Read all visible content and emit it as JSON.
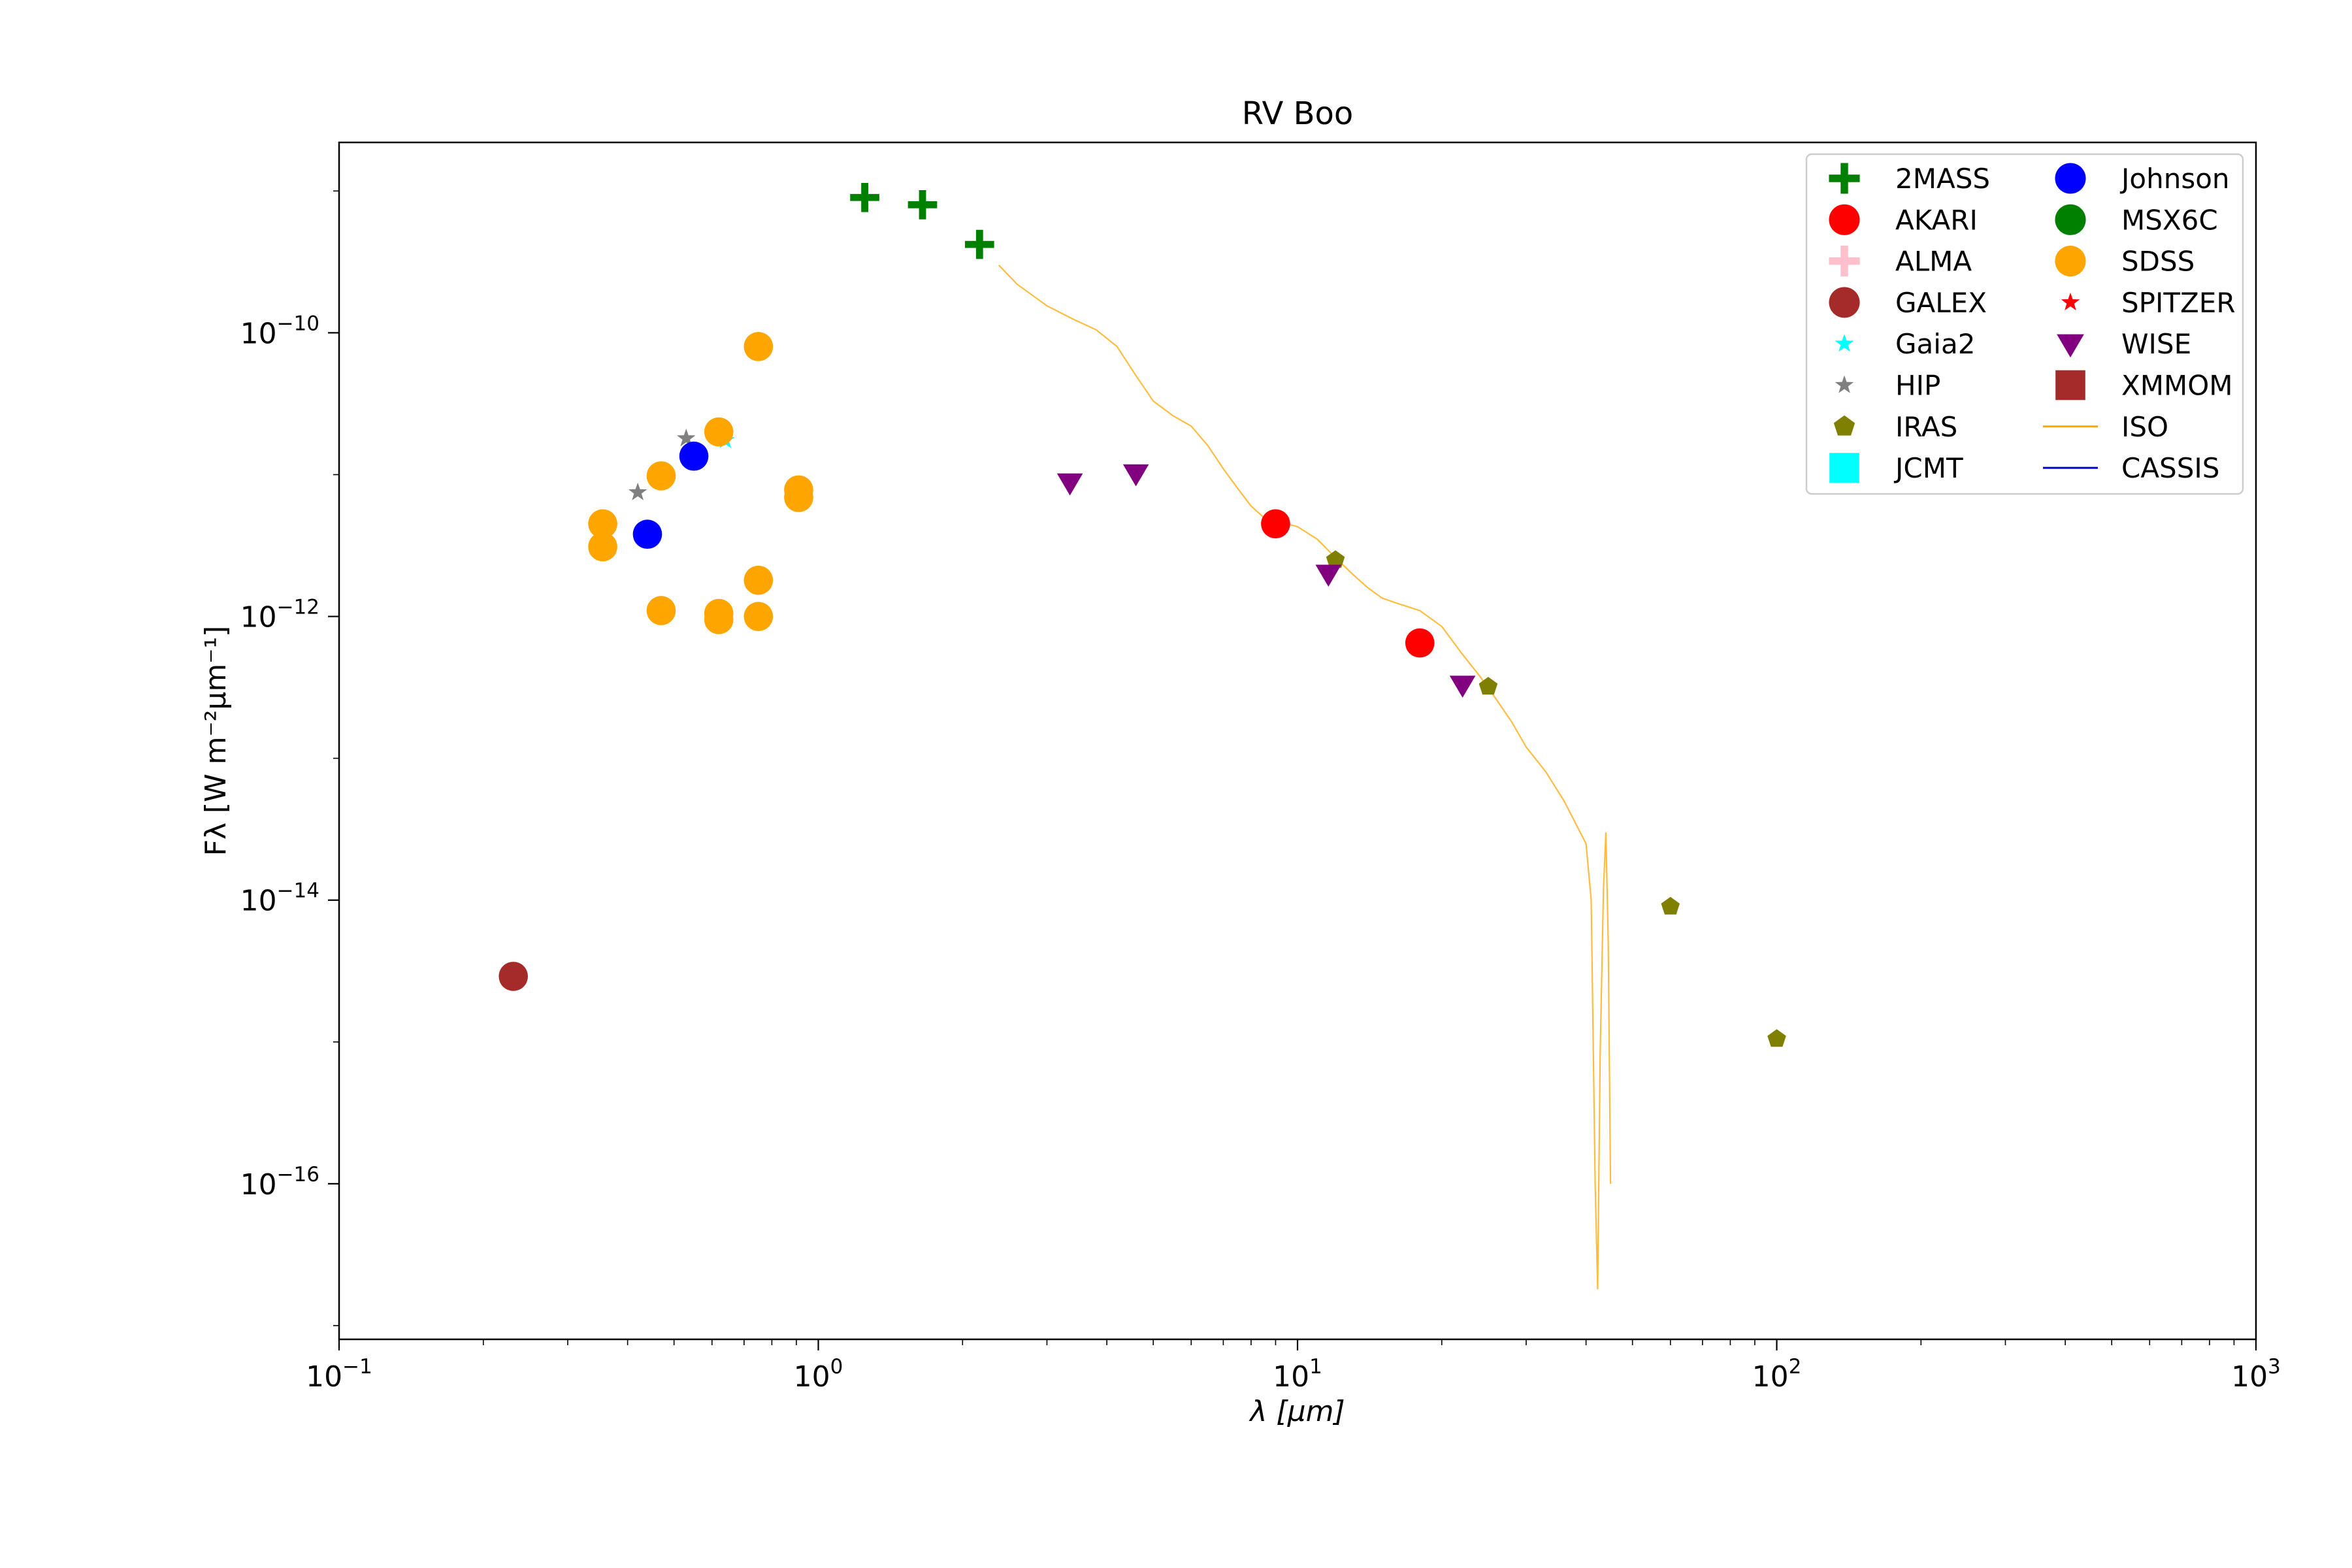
{
  "chart_data": {
    "type": "scatter",
    "title": "RV Boo",
    "xlabel": "λ [μm]",
    "ylabel": "Fλ [W m⁻²μm⁻¹]",
    "xscale": "log",
    "yscale": "log",
    "xlim": [
      0.1,
      1000
    ],
    "ylim": [
      8e-18,
      2.2e-09
    ],
    "x_ticks": [
      {
        "value": 0.1,
        "base": "10",
        "exp": "−1"
      },
      {
        "value": 1,
        "base": "10",
        "exp": "0"
      },
      {
        "value": 10,
        "base": "10",
        "exp": "1"
      },
      {
        "value": 100,
        "base": "10",
        "exp": "2"
      },
      {
        "value": 1000,
        "base": "10",
        "exp": "3"
      }
    ],
    "y_ticks": [
      {
        "value": 1e-10,
        "base": "10",
        "exp": "−10"
      },
      {
        "value": 1e-12,
        "base": "10",
        "exp": "−12"
      },
      {
        "value": 1e-14,
        "base": "10",
        "exp": "−14"
      },
      {
        "value": 1e-16,
        "base": "10",
        "exp": "−16"
      }
    ],
    "legend_position": "top-right",
    "series": [
      {
        "name": "2MASS",
        "marker": "plus",
        "color": "#008000",
        "points": [
          [
            1.25,
            9e-10
          ],
          [
            1.65,
            8e-10
          ],
          [
            2.17,
            4.2e-10
          ]
        ]
      },
      {
        "name": "AKARI",
        "marker": "circle",
        "color": "#ff0000",
        "points": [
          [
            9.0,
            4.5e-12
          ],
          [
            18.0,
            6.5e-13
          ]
        ]
      },
      {
        "name": "ALMA",
        "marker": "plus",
        "color": "#ffc0cb",
        "points": []
      },
      {
        "name": "GALEX",
        "marker": "circle",
        "color": "#a52a2a",
        "points": [
          [
            0.231,
            2.9e-15
          ]
        ]
      },
      {
        "name": "Gaia2",
        "marker": "star",
        "color": "#00ffff",
        "points": [
          [
            0.64,
            1.75e-11
          ]
        ]
      },
      {
        "name": "HIP",
        "marker": "star",
        "color": "#808080",
        "points": [
          [
            0.42,
            7.5e-12
          ],
          [
            0.53,
            1.8e-11
          ]
        ]
      },
      {
        "name": "IRAS",
        "marker": "pentagon",
        "color": "#808000",
        "points": [
          [
            12.0,
            2.5e-12
          ],
          [
            25.0,
            3.2e-13
          ],
          [
            60.0,
            9e-15
          ],
          [
            100.0,
            1.05e-15
          ]
        ]
      },
      {
        "name": "JCMT",
        "marker": "square",
        "color": "#00ffff",
        "points": []
      },
      {
        "name": "Johnson",
        "marker": "circle",
        "color": "#0000ff",
        "points": [
          [
            0.44,
            3.8e-12
          ],
          [
            0.55,
            1.35e-11
          ]
        ]
      },
      {
        "name": "MSX6C",
        "marker": "circle",
        "color": "#008000",
        "points": []
      },
      {
        "name": "SDSS",
        "marker": "circle",
        "color": "#ffa500",
        "points": [
          [
            0.355,
            4.5e-12
          ],
          [
            0.355,
            3.1e-12
          ],
          [
            0.47,
            9.8e-12
          ],
          [
            0.47,
            1.1e-12
          ],
          [
            0.62,
            2e-11
          ],
          [
            0.62,
            1.05e-12
          ],
          [
            0.62,
            9.5e-13
          ],
          [
            0.75,
            8e-11
          ],
          [
            0.75,
            1.8e-12
          ],
          [
            0.75,
            1e-12
          ],
          [
            0.91,
            7.8e-12
          ],
          [
            0.91,
            6.9e-12
          ]
        ]
      },
      {
        "name": "SPITZER",
        "marker": "star",
        "color": "#ff0000",
        "points": []
      },
      {
        "name": "WISE",
        "marker": "triangle-down",
        "color": "#800080",
        "points": [
          [
            3.35,
            8.8e-12
          ],
          [
            4.6,
            1.02e-11
          ],
          [
            11.6,
            2e-12
          ],
          [
            22.1,
            3.3e-13
          ]
        ]
      },
      {
        "name": "XMMOM",
        "marker": "square",
        "color": "#a52a2a",
        "points": []
      },
      {
        "name": "ISO",
        "marker": "line",
        "color": "#ffa500",
        "points": [
          [
            2.38,
            3e-10
          ],
          [
            2.6,
            2.2e-10
          ],
          [
            3.0,
            1.55e-10
          ],
          [
            3.4,
            1.25e-10
          ],
          [
            3.8,
            1.05e-10
          ],
          [
            4.2,
            8e-11
          ],
          [
            4.6,
            5e-11
          ],
          [
            5.0,
            3.3e-11
          ],
          [
            5.5,
            2.6e-11
          ],
          [
            6.0,
            2.2e-11
          ],
          [
            6.5,
            1.6e-11
          ],
          [
            7.0,
            1.1e-11
          ],
          [
            7.5,
            8e-12
          ],
          [
            8.0,
            6e-12
          ],
          [
            8.5,
            5e-12
          ],
          [
            9.0,
            4.6e-12
          ],
          [
            9.5,
            4.5e-12
          ],
          [
            10.0,
            4.3e-12
          ],
          [
            11.0,
            3.5e-12
          ],
          [
            12.0,
            2.6e-12
          ],
          [
            13.0,
            2e-12
          ],
          [
            14.0,
            1.6e-12
          ],
          [
            15.0,
            1.35e-12
          ],
          [
            16.0,
            1.25e-12
          ],
          [
            18.0,
            1.1e-12
          ],
          [
            20.0,
            8.5e-13
          ],
          [
            22.0,
            5.5e-13
          ],
          [
            24.0,
            3.8e-13
          ],
          [
            26.0,
            2.6e-13
          ],
          [
            28.0,
            1.8e-13
          ],
          [
            30.0,
            1.2e-13
          ],
          [
            33.0,
            8e-14
          ],
          [
            36.0,
            5e-14
          ],
          [
            38.0,
            3.5e-14
          ],
          [
            40.0,
            2.5e-14
          ],
          [
            41.0,
            1e-14
          ],
          [
            41.8,
            1e-16
          ],
          [
            42.3,
            1.8e-17
          ],
          [
            42.8,
            8e-16
          ],
          [
            43.5,
            1.2e-14
          ],
          [
            44.0,
            3e-14
          ],
          [
            44.5,
            5e-15
          ],
          [
            45.0,
            1e-16
          ]
        ]
      },
      {
        "name": "CASSIS",
        "marker": "line",
        "color": "#0000cd",
        "points": []
      }
    ]
  }
}
